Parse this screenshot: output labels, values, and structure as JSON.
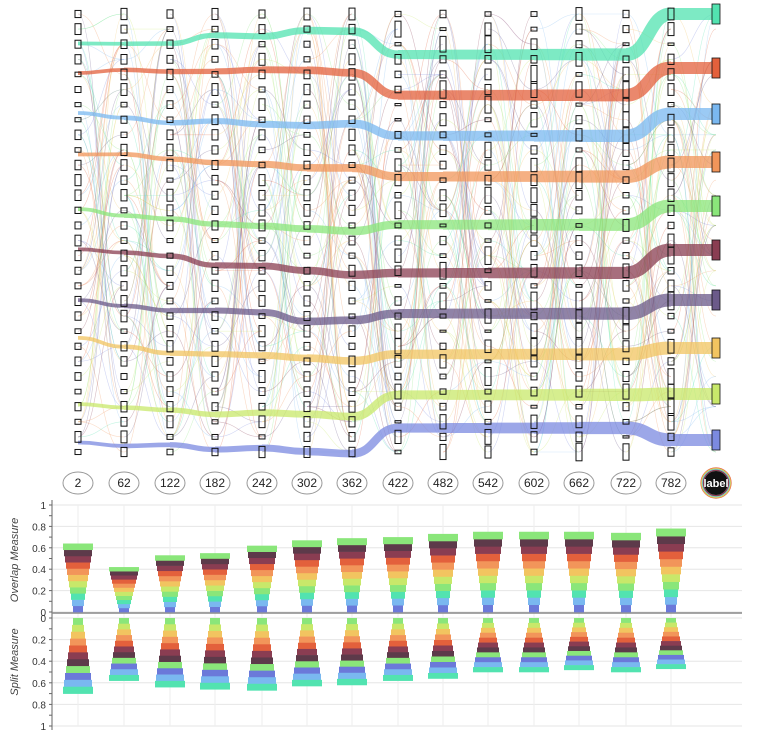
{
  "chart_data": [
    {
      "type": "flow",
      "layers": [
        "2",
        "62",
        "122",
        "182",
        "242",
        "302",
        "362",
        "422",
        "482",
        "542",
        "602",
        "662",
        "722",
        "782"
      ],
      "final_column_label": "label",
      "label_colors": [
        "#52e3b0",
        "#e3603c",
        "#7ab8f0",
        "#f2955a",
        "#8ae67a",
        "#8a3d52",
        "#6b5a8a",
        "#f2c460",
        "#c8e86a",
        "#7b8ae0"
      ]
    },
    {
      "type": "bar",
      "categories": [
        "2",
        "62",
        "122",
        "182",
        "242",
        "302",
        "362",
        "422",
        "482",
        "542",
        "602",
        "662",
        "722",
        "782"
      ],
      "top_axis_label": "Overlap Measure",
      "bottom_axis_label": "Split Measure",
      "yticks": [
        "0",
        "0.2",
        "0.4",
        "0.6",
        "0.8",
        "1"
      ],
      "ylim": [
        0,
        1
      ],
      "series": [
        {
          "values": [
            0.64,
            0.42,
            0.53,
            0.55,
            0.62,
            0.67,
            0.69,
            0.7,
            0.73,
            0.75,
            0.75,
            0.75,
            0.74,
            0.78
          ]
        },
        {
          "values": [
            0.7,
            0.58,
            0.64,
            0.66,
            0.67,
            0.63,
            0.62,
            0.58,
            0.56,
            0.5,
            0.5,
            0.48,
            0.5,
            0.47
          ]
        }
      ],
      "grid": true
    }
  ]
}
